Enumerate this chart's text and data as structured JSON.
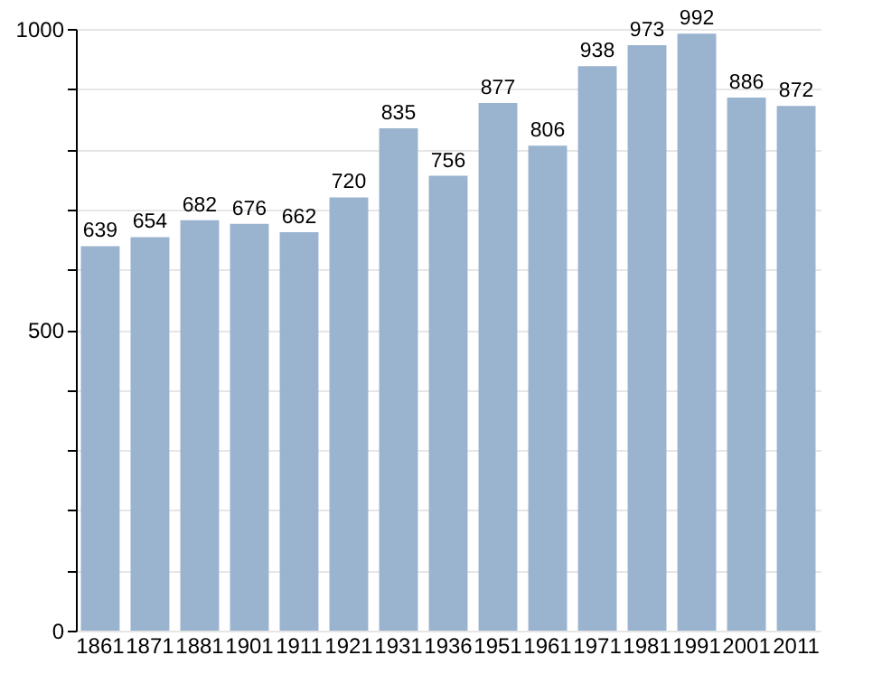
{
  "chart_data": {
    "type": "bar",
    "categories": [
      "1861",
      "1871",
      "1881",
      "1901",
      "1911",
      "1921",
      "1931",
      "1936",
      "1951",
      "1961",
      "1971",
      "1981",
      "1991",
      "2001",
      "2011"
    ],
    "values": [
      639,
      654,
      682,
      676,
      662,
      720,
      835,
      756,
      877,
      806,
      938,
      973,
      992,
      886,
      872
    ],
    "color": "#9ab3cf",
    "ylim": [
      0,
      1000
    ],
    "yticks": [
      0,
      {
        "value": 100,
        "label": null
      },
      {
        "value": 200,
        "label": null
      },
      {
        "value": 300,
        "label": null
      },
      {
        "value": 400,
        "label": null
      },
      500,
      {
        "value": 600,
        "label": null
      },
      {
        "value": 700,
        "label": null
      },
      {
        "value": 800,
        "label": null
      },
      {
        "value": 900,
        "label": null
      },
      1000
    ],
    "grid": true,
    "data_labels": true
  }
}
